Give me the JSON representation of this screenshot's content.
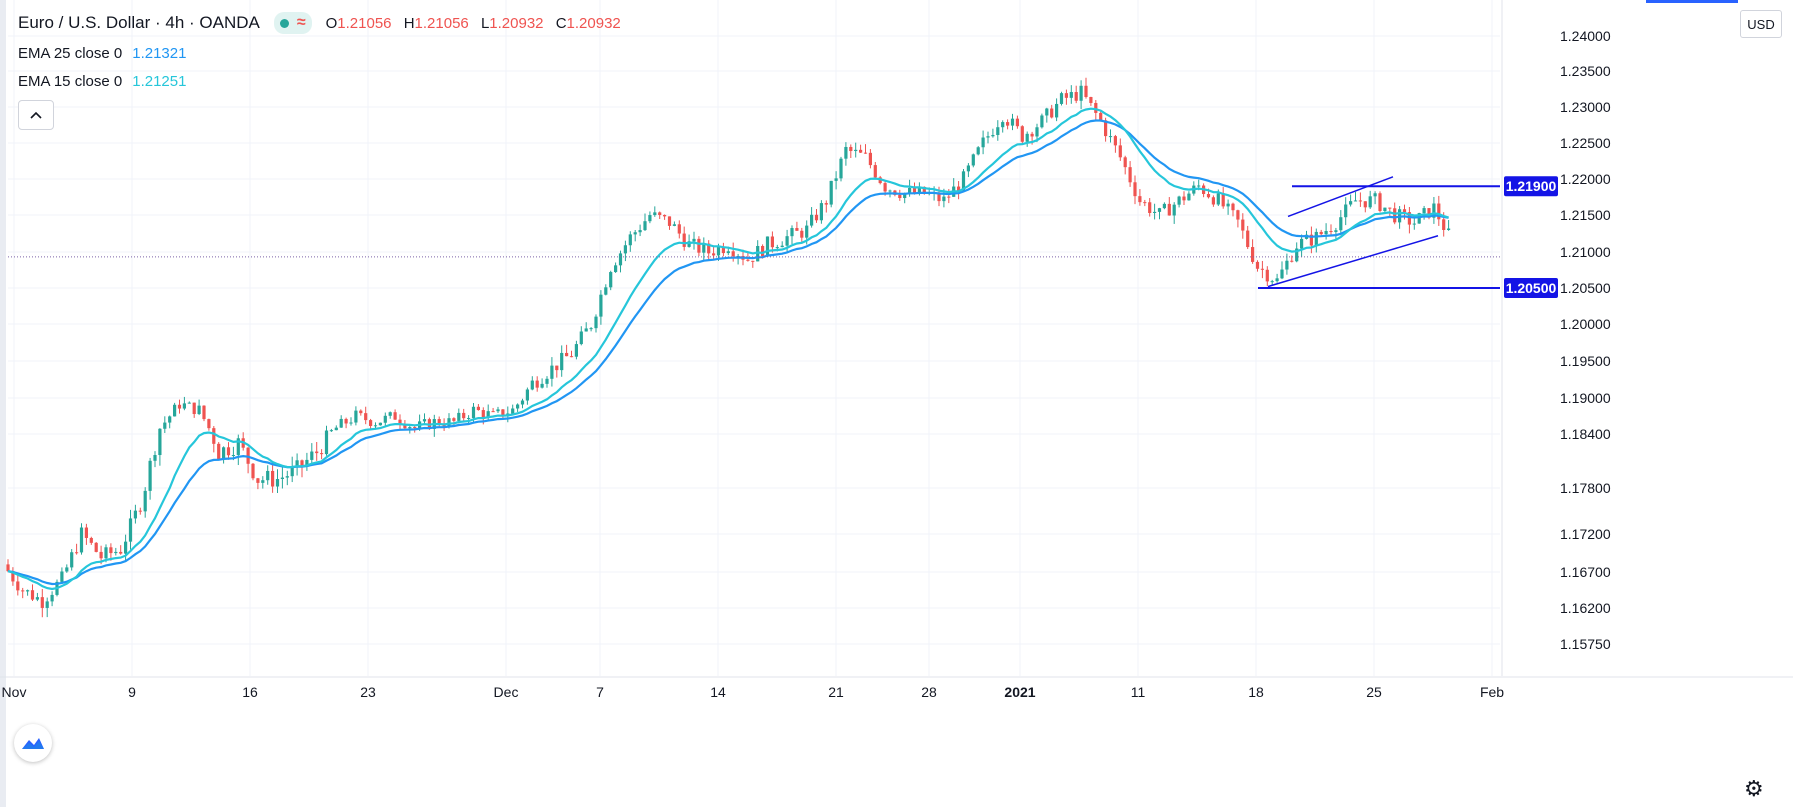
{
  "header": {
    "title": "Euro / U.S. Dollar · 4h · OANDA",
    "wave": "≈",
    "ohlc": {
      "open_label": "O",
      "open": "1.21056",
      "high_label": "H",
      "high": "1.21056",
      "low_label": "L",
      "low": "1.20932",
      "close_label": "C",
      "close": "1.20932"
    }
  },
  "indicators": [
    {
      "label": "EMA 25 close 0",
      "value": "1.21321",
      "color": "#2196f3"
    },
    {
      "label": "EMA 15 close 0",
      "value": "1.21251",
      "color": "#26c6da"
    }
  ],
  "controls": {
    "currency": "USD",
    "collapse": "^"
  },
  "colors": {
    "up": "#26a69a",
    "down": "#ef5350",
    "annotation": "#1414e6",
    "grid": "#f0f3fa",
    "price_line": "#9598a1"
  },
  "chart_data": {
    "type": "candlestick",
    "title": "Euro / U.S. Dollar · 4h · OANDA",
    "y_ticks": [
      "1.24000",
      "1.23500",
      "1.23000",
      "1.22500",
      "1.22000",
      "1.21500",
      "1.21000",
      "1.20500",
      "1.20000",
      "1.19500",
      "1.19000",
      "1.18400",
      "1.17800",
      "1.17200",
      "1.16700",
      "1.16200",
      "1.15750"
    ],
    "x_ticks": [
      "Nov",
      "9",
      "16",
      "23",
      "Dec",
      "7",
      "14",
      "21",
      "28",
      "2021",
      "11",
      "18",
      "25",
      "Feb"
    ],
    "x_ticks_bold": [
      "2021"
    ],
    "close_path": [
      1.168,
      1.1645,
      1.163,
      1.166,
      1.172,
      1.169,
      1.17,
      1.176,
      1.185,
      1.189,
      1.188,
      1.182,
      1.183,
      1.179,
      1.179,
      1.18,
      1.182,
      1.185,
      1.187,
      1.186,
      1.187,
      1.185,
      1.186,
      1.186,
      1.188,
      1.187,
      1.188,
      1.192,
      1.194,
      1.196,
      1.2,
      1.208,
      1.212,
      1.215,
      1.214,
      1.211,
      1.21,
      1.211,
      1.209,
      1.211,
      1.212,
      1.213,
      1.217,
      1.224,
      1.223,
      1.219,
      1.218,
      1.218,
      1.217,
      1.22,
      1.225,
      1.229,
      1.226,
      1.228,
      1.231,
      1.232,
      1.228,
      1.223,
      1.217,
      1.215,
      1.217,
      1.219,
      1.217,
      1.214,
      1.208,
      1.206,
      1.211,
      1.212,
      1.214,
      1.217,
      1.217,
      1.215,
      1.214,
      1.216,
      1.211,
      1.2093
    ],
    "ema_25": {
      "label": "EMA 25 close 0",
      "last": 1.21321
    },
    "ema_15": {
      "label": "EMA 15 close 0",
      "last": 1.21251
    },
    "last_price": 1.20932,
    "horizontal_levels": [
      {
        "value": 1.219,
        "label": "1.21900"
      },
      {
        "value": 1.205,
        "label": "1.20500"
      }
    ],
    "channel": {
      "lower_start": [
        1.2052,
        "Jan 18"
      ],
      "lower_end": [
        1.2122,
        "Jan 27"
      ],
      "upper_start": [
        1.2148,
        "Jan 19"
      ],
      "upper_end": [
        1.2203,
        "Jan 24"
      ]
    }
  }
}
